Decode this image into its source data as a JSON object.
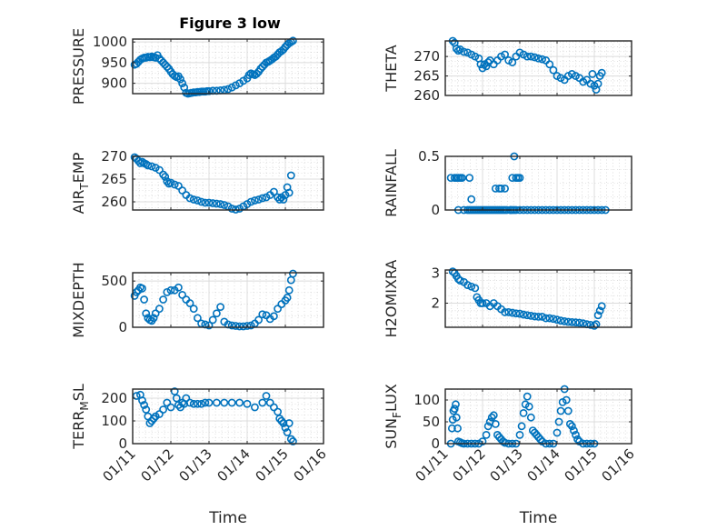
{
  "figure": {
    "title": "Figure 3 low",
    "marker_color": "#0072BD"
  },
  "chart_data": [
    {
      "type": "scatter",
      "id": "pressure",
      "title": "Figure 3 low",
      "ylabel": "PRESSURE",
      "ylabel_sub": null,
      "xlabel": "",
      "xlim": [
        0,
        5
      ],
      "ylim": [
        875,
        1007
      ],
      "yticks": [
        900,
        950,
        1000
      ],
      "ytick_labels": [
        "900",
        "950",
        "1000"
      ],
      "xticks": [
        0,
        1,
        2,
        3,
        4,
        5
      ],
      "xtick_labels": [],
      "grid": true,
      "x": [
        0.05,
        0.1,
        0.15,
        0.2,
        0.25,
        0.3,
        0.35,
        0.4,
        0.45,
        0.5,
        0.55,
        0.6,
        0.65,
        0.7,
        0.75,
        0.8,
        0.85,
        0.9,
        0.95,
        1.0,
        1.05,
        1.1,
        1.15,
        1.2,
        1.25,
        1.3,
        1.35,
        1.4,
        1.45,
        1.5,
        1.55,
        1.6,
        1.65,
        1.7,
        1.75,
        1.8,
        1.85,
        1.9,
        1.95,
        2.0,
        2.1,
        2.2,
        2.3,
        2.4,
        2.5,
        2.6,
        2.7,
        2.8,
        2.9,
        3.0,
        3.05,
        3.1,
        3.15,
        3.2,
        3.25,
        3.3,
        3.35,
        3.4,
        3.45,
        3.5,
        3.55,
        3.6,
        3.65,
        3.7,
        3.75,
        3.8,
        3.85,
        3.9,
        3.95,
        4.0,
        4.05,
        4.1,
        4.15,
        4.2
      ],
      "y": [
        945,
        947,
        952,
        957,
        960,
        962,
        962,
        964,
        963,
        965,
        963,
        962,
        968,
        960,
        955,
        950,
        945,
        940,
        935,
        928,
        922,
        918,
        915,
        917,
        910,
        900,
        890,
        877,
        875,
        876,
        877,
        878,
        878,
        879,
        879,
        880,
        880,
        880,
        881,
        881,
        882,
        882,
        883,
        884,
        886,
        890,
        895,
        900,
        906,
        912,
        920,
        924,
        922,
        920,
        923,
        928,
        935,
        940,
        945,
        950,
        952,
        955,
        958,
        962,
        965,
        970,
        975,
        978,
        982,
        988,
        993,
        997,
        1000,
        1003
      ]
    },
    {
      "type": "scatter",
      "id": "theta",
      "title": "",
      "ylabel": "THETA",
      "ylabel_sub": null,
      "xlabel": "",
      "xlim": [
        0,
        5
      ],
      "ylim": [
        260,
        274
      ],
      "yticks": [
        260,
        265,
        270
      ],
      "ytick_labels": [
        "260",
        "265",
        "270"
      ],
      "xticks": [
        0,
        1,
        2,
        3,
        4,
        5
      ],
      "xtick_labels": [],
      "grid": true,
      "x": [
        0.2,
        0.25,
        0.3,
        0.35,
        0.4,
        0.5,
        0.6,
        0.7,
        0.8,
        0.9,
        0.95,
        1.0,
        1.05,
        1.1,
        1.15,
        1.2,
        1.3,
        1.4,
        1.5,
        1.6,
        1.7,
        1.8,
        1.9,
        2.0,
        2.1,
        2.2,
        2.3,
        2.4,
        2.5,
        2.6,
        2.7,
        2.8,
        2.9,
        3.0,
        3.1,
        3.2,
        3.3,
        3.4,
        3.5,
        3.6,
        3.7,
        3.8,
        3.9,
        3.95,
        4.0,
        4.05,
        4.1,
        4.15,
        4.2
      ],
      "y": [
        274,
        273.5,
        272,
        271.5,
        271.8,
        271.2,
        271,
        270.5,
        270,
        269.5,
        268,
        267,
        268,
        267.5,
        268.5,
        269,
        268,
        269,
        270,
        270.5,
        269,
        268.5,
        270,
        271,
        270.5,
        270,
        270,
        269.8,
        269.5,
        269.3,
        269,
        268,
        266.5,
        265,
        264.5,
        264,
        265,
        265.5,
        265,
        264.5,
        263.5,
        264,
        263,
        265.5,
        262.5,
        261.5,
        263,
        265,
        265.8
      ]
    },
    {
      "type": "scatter",
      "id": "air_temp",
      "title": "",
      "ylabel": "AIR",
      "ylabel_sub": "T",
      "ylabel_rest": "EMP",
      "xlabel": "",
      "xlim": [
        0,
        5
      ],
      "ylim": [
        258.2,
        270
      ],
      "yticks": [
        260,
        265,
        270
      ],
      "ytick_labels": [
        "260",
        "265",
        "270"
      ],
      "xticks": [
        0,
        1,
        2,
        3,
        4,
        5
      ],
      "xtick_labels": [],
      "grid": true,
      "x": [
        0.05,
        0.1,
        0.15,
        0.2,
        0.25,
        0.3,
        0.35,
        0.4,
        0.5,
        0.6,
        0.7,
        0.8,
        0.85,
        0.9,
        0.95,
        1.0,
        1.1,
        1.2,
        1.3,
        1.4,
        1.5,
        1.6,
        1.7,
        1.8,
        1.9,
        2.0,
        2.1,
        2.2,
        2.3,
        2.4,
        2.5,
        2.6,
        2.7,
        2.8,
        2.9,
        3.0,
        3.1,
        3.2,
        3.3,
        3.4,
        3.5,
        3.6,
        3.7,
        3.8,
        3.85,
        3.9,
        3.95,
        4.0,
        4.05,
        4.1,
        4.15
      ],
      "y": [
        269.8,
        269.5,
        269,
        268.5,
        268.8,
        268.5,
        268.3,
        268,
        267.8,
        267.5,
        267,
        266,
        265.5,
        264.5,
        264,
        264.2,
        263.8,
        263.5,
        262.5,
        261.5,
        260.8,
        260.5,
        260.3,
        260,
        259.8,
        259.8,
        259.7,
        259.6,
        259.5,
        259.3,
        259,
        258.5,
        258.3,
        258.5,
        259,
        259.5,
        260,
        260.3,
        260.5,
        260.8,
        261,
        261.5,
        262.2,
        261,
        260.5,
        261,
        260.5,
        261.5,
        263.2,
        262,
        265.8
      ]
    },
    {
      "type": "scatter",
      "id": "rainfall",
      "title": "",
      "ylabel": "RAINFALL",
      "ylabel_sub": null,
      "xlabel": "",
      "xlim": [
        0,
        5
      ],
      "ylim": [
        0,
        0.5
      ],
      "yticks": [
        0,
        0.5
      ],
      "ytick_labels": [
        "0",
        "0.5"
      ],
      "xticks": [
        0,
        1,
        2,
        3,
        4,
        5
      ],
      "xtick_labels": [],
      "grid": true,
      "x": [
        0.15,
        0.25,
        0.3,
        0.35,
        0.4,
        0.45,
        0.5,
        0.65,
        0.7,
        0.35,
        0.6,
        0.65,
        0.7,
        0.75,
        0.8,
        0.85,
        0.9,
        0.95,
        1.0,
        1.05,
        1.1,
        1.15,
        1.2,
        1.25,
        1.3,
        1.35,
        1.4,
        1.45,
        1.5,
        1.55,
        1.6,
        1.65,
        1.75,
        1.85,
        1.8,
        1.9,
        1.95,
        2.0,
        1.35,
        1.45,
        1.5,
        1.6,
        1.75,
        1.8,
        1.85,
        1.9,
        2.0,
        2.1,
        2.2,
        2.3,
        2.4,
        2.5,
        2.6,
        2.7,
        2.8,
        2.9,
        3.0,
        3.1,
        3.2,
        3.3,
        3.4,
        3.5,
        3.6,
        3.7,
        3.8,
        3.9,
        4.0,
        4.1,
        4.2,
        4.3
      ],
      "y": [
        0.3,
        0.3,
        0.3,
        0.3,
        0.3,
        0.3,
        0,
        0.3,
        0.1,
        0,
        0,
        0,
        0,
        0,
        0,
        0,
        0,
        0,
        0,
        0,
        0,
        0,
        0,
        0,
        0,
        0,
        0,
        0,
        0,
        0,
        0,
        0,
        0,
        0.5,
        0.3,
        0.3,
        0.3,
        0.3,
        0.2,
        0.2,
        0.2,
        0.2,
        0,
        0,
        0,
        0,
        0,
        0,
        0,
        0,
        0,
        0,
        0,
        0,
        0,
        0,
        0,
        0,
        0,
        0,
        0,
        0,
        0,
        0,
        0,
        0,
        0,
        0,
        0,
        0
      ]
    },
    {
      "type": "scatter",
      "id": "mixdepth",
      "title": "",
      "ylabel": "MIXDEPTH",
      "ylabel_sub": null,
      "xlabel": "",
      "xlim": [
        0,
        5
      ],
      "ylim": [
        0,
        590
      ],
      "yticks": [
        0,
        500
      ],
      "ytick_labels": [
        "0",
        "500"
      ],
      "xticks": [
        0,
        1,
        2,
        3,
        4,
        5
      ],
      "xtick_labels": [],
      "grid": true,
      "x": [
        0.05,
        0.1,
        0.15,
        0.2,
        0.25,
        0.3,
        0.35,
        0.4,
        0.45,
        0.5,
        0.55,
        0.6,
        0.7,
        0.8,
        0.9,
        1.0,
        1.1,
        1.2,
        1.3,
        1.4,
        1.5,
        1.6,
        1.7,
        1.8,
        1.9,
        2.0,
        2.1,
        2.2,
        2.3,
        2.4,
        2.5,
        2.6,
        2.7,
        2.8,
        2.9,
        3.0,
        3.1,
        3.2,
        3.3,
        3.4,
        3.5,
        3.6,
        3.7,
        3.8,
        3.9,
        4.0,
        4.05,
        4.1,
        4.15,
        4.2
      ],
      "y": [
        340,
        380,
        400,
        430,
        420,
        300,
        150,
        100,
        80,
        70,
        100,
        150,
        200,
        300,
        380,
        400,
        400,
        430,
        350,
        300,
        260,
        200,
        100,
        40,
        30,
        20,
        80,
        150,
        220,
        60,
        30,
        20,
        15,
        10,
        10,
        15,
        20,
        40,
        80,
        140,
        130,
        90,
        120,
        200,
        250,
        290,
        320,
        400,
        510,
        580
      ]
    },
    {
      "type": "scatter",
      "id": "h2omixra",
      "title": "",
      "ylabel": "H2OMIXRA",
      "ylabel_sub": null,
      "xlabel": "",
      "xlim": [
        0,
        5
      ],
      "ylim": [
        1.2,
        3.1
      ],
      "yticks": [
        2,
        3
      ],
      "ytick_labels": [
        "2",
        "3"
      ],
      "xticks": [
        0,
        1,
        2,
        3,
        4,
        5
      ],
      "xtick_labels": [],
      "grid": true,
      "x": [
        0.2,
        0.25,
        0.3,
        0.35,
        0.4,
        0.5,
        0.6,
        0.7,
        0.8,
        0.85,
        0.9,
        0.95,
        1.0,
        1.1,
        1.2,
        1.3,
        1.4,
        1.5,
        1.6,
        1.7,
        1.8,
        1.9,
        2.0,
        2.1,
        2.2,
        2.3,
        2.4,
        2.5,
        2.6,
        2.7,
        2.8,
        2.9,
        3.0,
        3.1,
        3.2,
        3.3,
        3.4,
        3.5,
        3.6,
        3.7,
        3.8,
        3.9,
        4.0,
        4.05,
        4.1,
        4.15,
        4.2
      ],
      "y": [
        3.05,
        3.0,
        2.9,
        2.8,
        2.75,
        2.7,
        2.6,
        2.55,
        2.5,
        2.2,
        2.1,
        2.0,
        2.0,
        2.0,
        1.9,
        2.0,
        1.9,
        1.8,
        1.7,
        1.7,
        1.68,
        1.66,
        1.65,
        1.62,
        1.6,
        1.58,
        1.56,
        1.55,
        1.55,
        1.5,
        1.5,
        1.48,
        1.45,
        1.42,
        1.4,
        1.38,
        1.37,
        1.36,
        1.35,
        1.33,
        1.3,
        1.28,
        1.25,
        1.3,
        1.6,
        1.75,
        1.9
      ]
    },
    {
      "type": "scatter",
      "id": "terr_msl",
      "title": "",
      "ylabel": "TERR",
      "ylabel_sub": "M",
      "ylabel_rest": "SL",
      "xlabel": "Time",
      "xlim": [
        0,
        5
      ],
      "ylim": [
        0,
        240
      ],
      "yticks": [
        0,
        100,
        200
      ],
      "ytick_labels": [
        "0",
        "100",
        "200"
      ],
      "xticks": [
        0,
        1,
        2,
        3,
        4,
        5
      ],
      "xtick_labels": [
        "01/11",
        "01/12",
        "01/13",
        "01/14",
        "01/15",
        "01/16"
      ],
      "grid": true,
      "x": [
        0.1,
        0.2,
        0.25,
        0.3,
        0.35,
        0.4,
        0.45,
        0.5,
        0.55,
        0.6,
        0.7,
        0.8,
        0.9,
        1.0,
        1.1,
        1.15,
        1.2,
        1.25,
        1.3,
        1.35,
        1.4,
        1.5,
        1.6,
        1.7,
        1.8,
        1.9,
        2.0,
        2.2,
        2.4,
        2.6,
        2.8,
        3.0,
        3.2,
        3.4,
        3.5,
        3.6,
        3.7,
        3.8,
        3.85,
        3.9,
        3.95,
        4.0,
        4.05,
        4.1,
        4.15,
        4.2
      ],
      "y": [
        210,
        215,
        190,
        170,
        150,
        120,
        90,
        100,
        110,
        120,
        130,
        150,
        180,
        160,
        230,
        200,
        170,
        160,
        180,
        175,
        200,
        180,
        175,
        175,
        175,
        180,
        180,
        180,
        180,
        180,
        180,
        175,
        160,
        180,
        210,
        180,
        160,
        140,
        110,
        100,
        90,
        70,
        50,
        90,
        20,
        10
      ]
    },
    {
      "type": "scatter",
      "id": "sun_flux",
      "title": "",
      "ylabel": "SUN",
      "ylabel_sub": "F",
      "ylabel_rest": "LUX",
      "xlabel": "Time",
      "xlim": [
        0,
        5
      ],
      "ylim": [
        0,
        125
      ],
      "yticks": [
        0,
        50,
        100
      ],
      "ytick_labels": [
        "0",
        "50",
        "100"
      ],
      "xticks": [
        0,
        1,
        2,
        3,
        4,
        5
      ],
      "xtick_labels": [
        "01/11",
        "01/12",
        "01/13",
        "01/14",
        "01/15",
        "01/16"
      ],
      "grid": true,
      "x": [
        0.15,
        0.18,
        0.2,
        0.22,
        0.25,
        0.28,
        0.3,
        0.33,
        0.35,
        0.4,
        0.45,
        0.5,
        0.6,
        0.7,
        0.8,
        0.9,
        1.0,
        1.1,
        1.15,
        1.2,
        1.25,
        1.3,
        1.35,
        1.4,
        1.45,
        1.5,
        1.55,
        1.6,
        1.7,
        1.8,
        1.9,
        2.0,
        2.05,
        2.1,
        2.15,
        2.2,
        2.25,
        2.3,
        2.35,
        2.4,
        2.45,
        2.5,
        2.55,
        2.6,
        2.7,
        2.8,
        2.9,
        3.0,
        3.05,
        3.1,
        3.15,
        3.2,
        3.25,
        3.3,
        3.35,
        3.4,
        3.45,
        3.5,
        3.55,
        3.6,
        3.7,
        3.8,
        3.9,
        4.0
      ],
      "y": [
        0,
        35,
        55,
        75,
        80,
        90,
        60,
        35,
        5,
        3,
        1,
        0,
        0,
        0,
        0,
        0,
        5,
        20,
        40,
        50,
        60,
        65,
        45,
        20,
        15,
        10,
        5,
        2,
        0,
        0,
        0,
        20,
        40,
        70,
        90,
        108,
        85,
        60,
        30,
        25,
        20,
        15,
        10,
        5,
        0,
        0,
        0,
        25,
        50,
        75,
        95,
        125,
        100,
        75,
        45,
        40,
        30,
        20,
        10,
        5,
        0,
        0,
        0,
        0
      ]
    }
  ]
}
